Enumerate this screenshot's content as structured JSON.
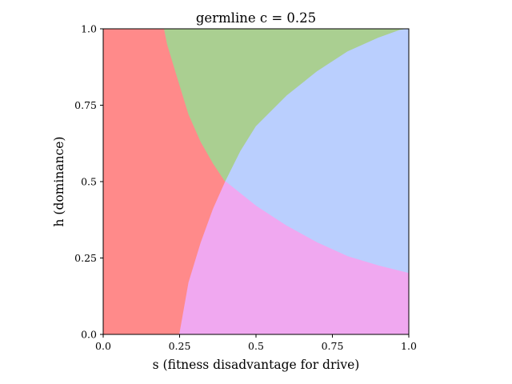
{
  "chart_data": {
    "type": "heatmap",
    "title": "germline c = 0.25",
    "xlabel": "s (fitness disadvantage for drive)",
    "ylabel": "h (dominance)",
    "xlim": [
      0,
      1
    ],
    "ylim": [
      0,
      1
    ],
    "x_ticks": [
      {
        "value": 0,
        "label": "0.0"
      },
      {
        "value": 0.25,
        "label": "0.25"
      },
      {
        "value": 0.5,
        "label": "0.5"
      },
      {
        "value": 0.75,
        "label": "0.75"
      },
      {
        "value": 1,
        "label": "1.0"
      }
    ],
    "y_ticks": [
      {
        "value": 0,
        "label": "0.0"
      },
      {
        "value": 0.25,
        "label": "0.25"
      },
      {
        "value": 0.5,
        "label": "0.5"
      },
      {
        "value": 0.75,
        "label": "0.75"
      },
      {
        "value": 1,
        "label": "1.0"
      }
    ],
    "grid": false,
    "regions": [
      {
        "id": "left",
        "color": "#ff8a8a",
        "boundary": [
          [
            0,
            0
          ],
          [
            0.25,
            0
          ],
          [
            0.28,
            0.17
          ],
          [
            0.32,
            0.3
          ],
          [
            0.36,
            0.41
          ],
          [
            0.4,
            0.5
          ],
          [
            0.36,
            0.56
          ],
          [
            0.32,
            0.63
          ],
          [
            0.28,
            0.72
          ],
          [
            0.24,
            0.85
          ],
          [
            0.21,
            0.95
          ],
          [
            0.2,
            1
          ],
          [
            0,
            1
          ]
        ]
      },
      {
        "id": "top",
        "color": "#aacf91",
        "boundary": [
          [
            0.2,
            1
          ],
          [
            0.21,
            0.95
          ],
          [
            0.24,
            0.85
          ],
          [
            0.28,
            0.72
          ],
          [
            0.32,
            0.63
          ],
          [
            0.36,
            0.56
          ],
          [
            0.4,
            0.5
          ],
          [
            0.45,
            0.6
          ],
          [
            0.5,
            0.68
          ],
          [
            0.6,
            0.78
          ],
          [
            0.7,
            0.86
          ],
          [
            0.8,
            0.925
          ],
          [
            0.9,
            0.97
          ],
          [
            0.97,
            0.995
          ],
          [
            1,
            1
          ]
        ]
      },
      {
        "id": "right",
        "color": "#bacffe",
        "boundary": [
          [
            0.4,
            0.5
          ],
          [
            0.45,
            0.6
          ],
          [
            0.5,
            0.68
          ],
          [
            0.6,
            0.78
          ],
          [
            0.7,
            0.86
          ],
          [
            0.8,
            0.925
          ],
          [
            0.9,
            0.97
          ],
          [
            0.97,
            0.995
          ],
          [
            1,
            1
          ],
          [
            1,
            0.2
          ],
          [
            0.9,
            0.225
          ],
          [
            0.8,
            0.255
          ],
          [
            0.7,
            0.3
          ],
          [
            0.6,
            0.355
          ],
          [
            0.5,
            0.42
          ],
          [
            0.45,
            0.46
          ],
          [
            0.4,
            0.5
          ]
        ]
      },
      {
        "id": "bottom",
        "color": "#f0a8f0",
        "boundary": [
          [
            0.25,
            0
          ],
          [
            1,
            0
          ],
          [
            1,
            0.2
          ],
          [
            0.9,
            0.225
          ],
          [
            0.8,
            0.255
          ],
          [
            0.7,
            0.3
          ],
          [
            0.6,
            0.355
          ],
          [
            0.5,
            0.42
          ],
          [
            0.45,
            0.46
          ],
          [
            0.4,
            0.5
          ],
          [
            0.36,
            0.41
          ],
          [
            0.32,
            0.3
          ],
          [
            0.28,
            0.17
          ],
          [
            0.25,
            0
          ]
        ]
      }
    ]
  }
}
